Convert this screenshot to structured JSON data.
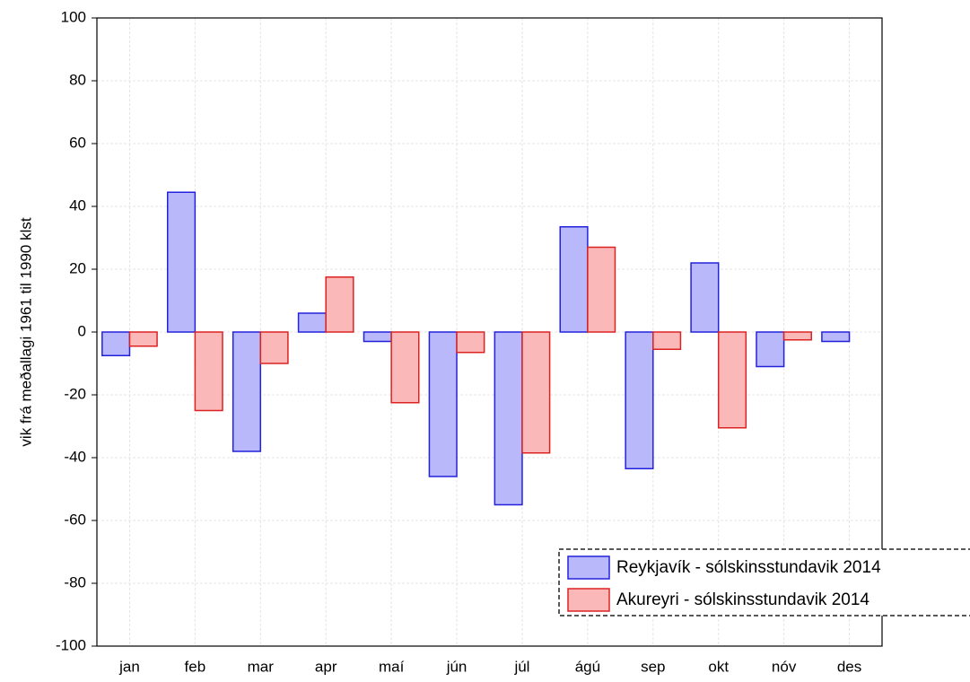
{
  "chart_data": {
    "type": "bar",
    "ylabel": "vik frá meðallagi 1961 til 1990 klst",
    "categories": [
      "jan",
      "feb",
      "mar",
      "apr",
      "maí",
      "jún",
      "júl",
      "ágú",
      "sep",
      "okt",
      "nóv",
      "des"
    ],
    "series": [
      {
        "name": "Reykjavík - sólskinsstundavik 2014",
        "color": "#b8b8fa",
        "edgecolor": "#2222dd",
        "values": [
          -7.5,
          44.5,
          -38,
          6,
          -3,
          -46,
          -55,
          33.5,
          -43.5,
          22,
          -11,
          -3
        ]
      },
      {
        "name": "Akureyri - sólskinsstundavik 2014",
        "color": "#fab8b8",
        "edgecolor": "#dd2222",
        "values": [
          -4.5,
          -25,
          -10,
          17.5,
          -22.5,
          -6.5,
          -38.5,
          27,
          -5.5,
          -30.5,
          -2.5,
          0
        ]
      }
    ],
    "ylim": [
      -100,
      100
    ],
    "yticks": [
      -100,
      -80,
      -60,
      -40,
      -20,
      0,
      20,
      40,
      60,
      80,
      100
    ],
    "grid": true,
    "legend": "lower right"
  }
}
